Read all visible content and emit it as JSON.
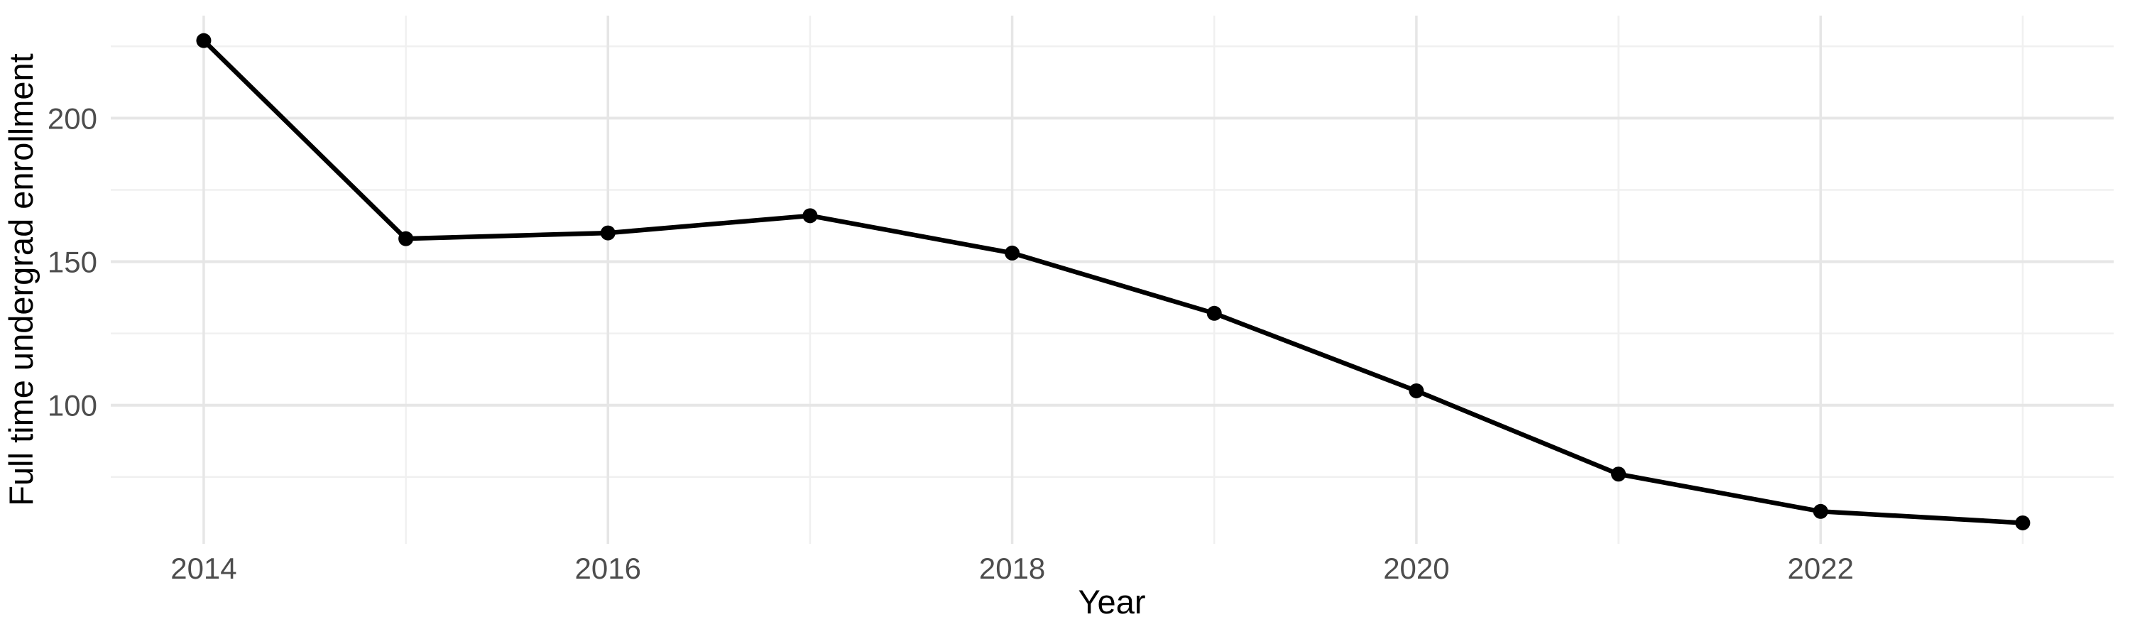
{
  "chart_data": {
    "type": "line",
    "title": "",
    "xlabel": "Year",
    "ylabel": "Full time undergrad enrollment",
    "series": [
      {
        "name": "Full time undergrad enrollment",
        "x": [
          2014,
          2015,
          2016,
          2017,
          2018,
          2019,
          2020,
          2021,
          2022,
          2023
        ],
        "values": [
          227,
          158,
          160,
          166,
          153,
          132,
          105,
          76,
          63,
          59
        ]
      }
    ],
    "x_tick_labels": [
      "2014",
      "2016",
      "2018",
      "2020",
      "2022"
    ],
    "x_major_ticks": [
      2014,
      2016,
      2018,
      2020,
      2022
    ],
    "x_minor_gridlines": [
      2015,
      2017,
      2019,
      2021,
      2023
    ],
    "y_tick_labels": [
      "100",
      "150",
      "200"
    ],
    "y_major_ticks": [
      100,
      150,
      200
    ],
    "y_minor_gridlines": [
      75,
      125,
      175,
      225
    ],
    "xlim": [
      2013.54,
      2023.45
    ],
    "ylim": [
      51.7,
      235.7
    ],
    "grid": "major+minor",
    "legend_position": "none",
    "marker": "point",
    "colors": {
      "line": "#000000",
      "point": "#000000",
      "grid_major": "#e6e6e6",
      "grid_minor": "#f0f0f0",
      "tick_label": "#4d4d4d",
      "axis_title": "#000000",
      "background": "#ffffff"
    }
  }
}
